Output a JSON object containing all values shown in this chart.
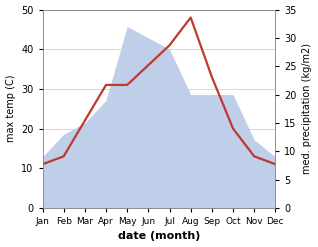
{
  "months": [
    "Jan",
    "Feb",
    "Mar",
    "Apr",
    "May",
    "Jun",
    "Jul",
    "Aug",
    "Sep",
    "Oct",
    "Nov",
    "Dec"
  ],
  "temperature": [
    11,
    13,
    22,
    31,
    31,
    36,
    41,
    48,
    33,
    20,
    13,
    11
  ],
  "precipitation": [
    9,
    13,
    15,
    19,
    32,
    30,
    28,
    20,
    20,
    20,
    12,
    9
  ],
  "temp_color": "#c0392b",
  "precip_color": "#bfcfea",
  "left_ylim": [
    0,
    50
  ],
  "right_ylim": [
    0,
    35
  ],
  "left_yticks": [
    0,
    10,
    20,
    30,
    40,
    50
  ],
  "right_yticks": [
    0,
    5,
    10,
    15,
    20,
    25,
    30,
    35
  ],
  "ylabel_left": "max temp (C)",
  "ylabel_right": "med. precipitation (kg/m2)",
  "xlabel": "date (month)",
  "temp_linewidth": 1.6,
  "bg_color": "#ffffff",
  "grid_color": "#d0d0d0"
}
